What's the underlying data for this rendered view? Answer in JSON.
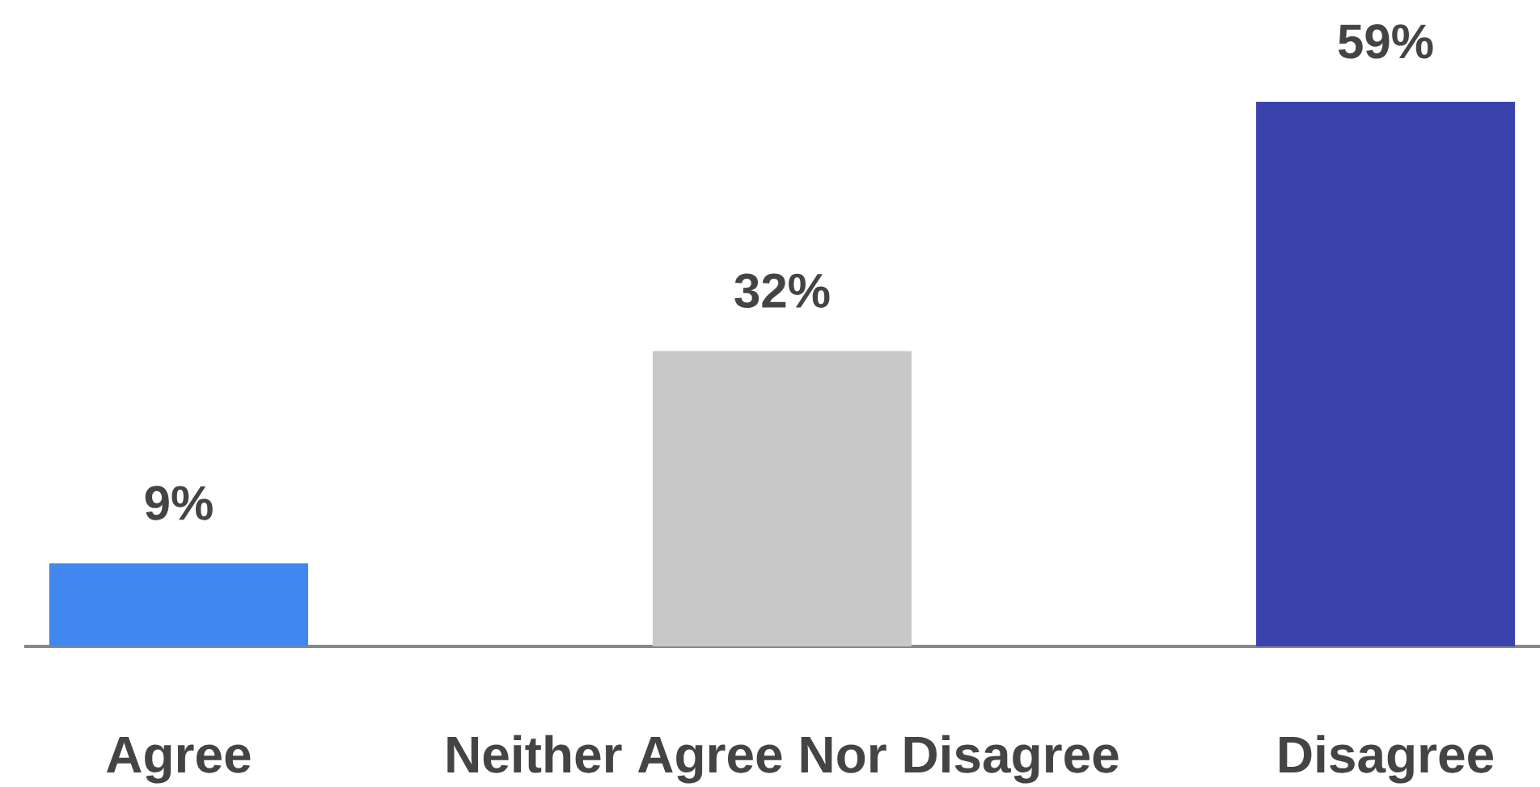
{
  "chart_data": {
    "type": "bar",
    "categories": [
      "Agree",
      "Neither Agree Nor Disagree",
      "Disagree"
    ],
    "values": [
      9,
      32,
      59
    ],
    "colors": [
      "#4287f0",
      "#c8c8c8",
      "#3a43ad"
    ],
    "value_labels": [
      "9%",
      "32%",
      "59%"
    ]
  }
}
